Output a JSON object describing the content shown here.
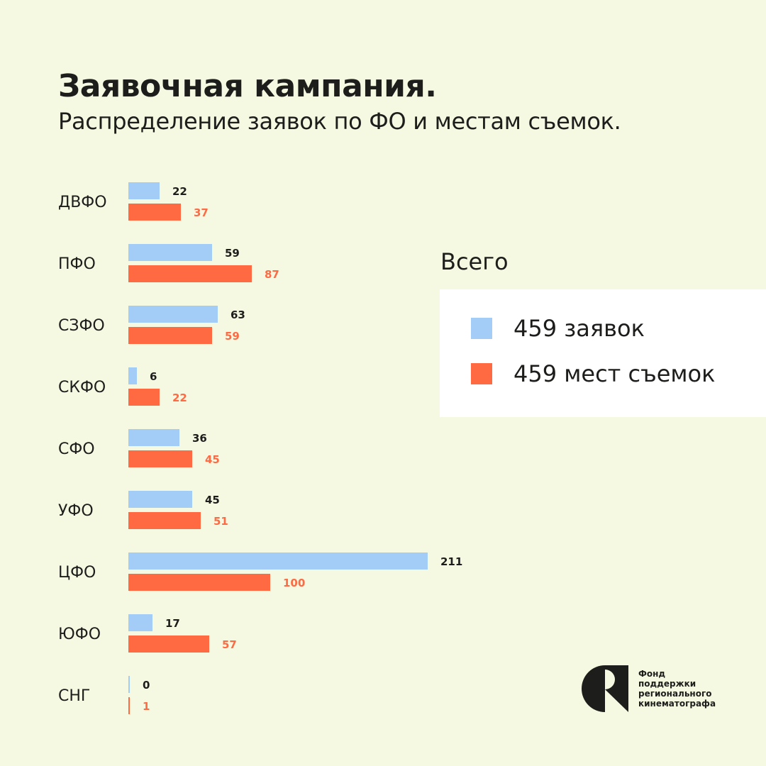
{
  "header": {
    "title": "Заявочная кампания.",
    "subtitle": "Распределение заявок по ФО и местам съемок."
  },
  "totals": {
    "heading": "Всего",
    "items": [
      {
        "label": "459 заявок",
        "color": "#a3cdf7"
      },
      {
        "label": "459 мест съемок",
        "color": "#ff6a43"
      }
    ]
  },
  "logo": {
    "lines": [
      "Фонд поддержки",
      "регионального",
      "кинематографа"
    ]
  },
  "chart_data": {
    "type": "bar",
    "orientation": "horizontal",
    "categories": [
      "ДВФО",
      "ПФО",
      "СЗФО",
      "СКФО",
      "СФО",
      "УФО",
      "ЦФО",
      "ЮФО",
      "СНГ"
    ],
    "series": [
      {
        "values": [
          22,
          59,
          63,
          6,
          36,
          45,
          211,
          17,
          0
        ],
        "color": "#a3cdf7"
      },
      {
        "values": [
          37,
          87,
          59,
          22,
          45,
          51,
          100,
          57,
          1
        ],
        "color": "#ff6a43"
      }
    ],
    "xlim": [
      0,
      211
    ],
    "grid": false,
    "data_labels": true
  }
}
